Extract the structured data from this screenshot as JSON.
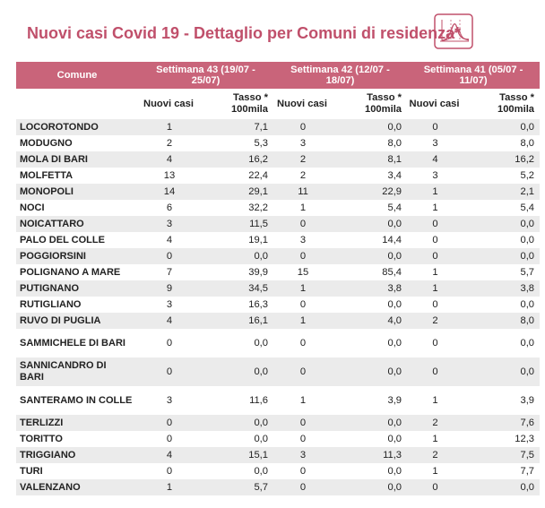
{
  "title": "Nuovi casi Covid 19 - Dettaglio per Comuni di residenza*",
  "logo_icon": "trend-chart-icon",
  "colors": {
    "accent": "#c0506b",
    "header_bg": "#c9647a",
    "row_alt": "#ebebeb"
  },
  "table": {
    "col_comune": "Comune",
    "weeks": [
      {
        "label": "Settimana 43 (19/07 - 25/07)"
      },
      {
        "label": "Settimana 42 (12/07 - 18/07)"
      },
      {
        "label": "Settimana 41 (05/07 - 11/07)"
      }
    ],
    "sub_cases": "Nuovi casi",
    "sub_rate": "Tasso * 100mila",
    "rows": [
      {
        "name": "LOCOROTONDO",
        "c43": "1",
        "r43": "7,1",
        "c42": "0",
        "r42": "0,0",
        "c41": "0",
        "r41": "0,0"
      },
      {
        "name": "MODUGNO",
        "c43": "2",
        "r43": "5,3",
        "c42": "3",
        "r42": "8,0",
        "c41": "3",
        "r41": "8,0"
      },
      {
        "name": "MOLA DI BARI",
        "c43": "4",
        "r43": "16,2",
        "c42": "2",
        "r42": "8,1",
        "c41": "4",
        "r41": "16,2"
      },
      {
        "name": "MOLFETTA",
        "c43": "13",
        "r43": "22,4",
        "c42": "2",
        "r42": "3,4",
        "c41": "3",
        "r41": "5,2"
      },
      {
        "name": "MONOPOLI",
        "c43": "14",
        "r43": "29,1",
        "c42": "11",
        "r42": "22,9",
        "c41": "1",
        "r41": "2,1"
      },
      {
        "name": "NOCI",
        "c43": "6",
        "r43": "32,2",
        "c42": "1",
        "r42": "5,4",
        "c41": "1",
        "r41": "5,4"
      },
      {
        "name": "NOICATTARO",
        "c43": "3",
        "r43": "11,5",
        "c42": "0",
        "r42": "0,0",
        "c41": "0",
        "r41": "0,0"
      },
      {
        "name": "PALO DEL COLLE",
        "c43": "4",
        "r43": "19,1",
        "c42": "3",
        "r42": "14,4",
        "c41": "0",
        "r41": "0,0"
      },
      {
        "name": "POGGIORSINI",
        "c43": "0",
        "r43": "0,0",
        "c42": "0",
        "r42": "0,0",
        "c41": "0",
        "r41": "0,0"
      },
      {
        "name": "POLIGNANO A MARE",
        "c43": "7",
        "r43": "39,9",
        "c42": "15",
        "r42": "85,4",
        "c41": "1",
        "r41": "5,7"
      },
      {
        "name": "PUTIGNANO",
        "c43": "9",
        "r43": "34,5",
        "c42": "1",
        "r42": "3,8",
        "c41": "1",
        "r41": "3,8"
      },
      {
        "name": "RUTIGLIANO",
        "c43": "3",
        "r43": "16,3",
        "c42": "0",
        "r42": "0,0",
        "c41": "0",
        "r41": "0,0"
      },
      {
        "name": "RUVO DI PUGLIA",
        "c43": "4",
        "r43": "16,1",
        "c42": "1",
        "r42": "4,0",
        "c41": "2",
        "r41": "8,0"
      },
      {
        "name": "SAMMICHELE DI BARI",
        "c43": "0",
        "r43": "0,0",
        "c42": "0",
        "r42": "0,0",
        "c41": "0",
        "r41": "0,0",
        "tall": true
      },
      {
        "name": "SANNICANDRO DI BARI",
        "c43": "0",
        "r43": "0,0",
        "c42": "0",
        "r42": "0,0",
        "c41": "0",
        "r41": "0,0",
        "tall": true
      },
      {
        "name": "SANTERAMO IN COLLE",
        "c43": "3",
        "r43": "11,6",
        "c42": "1",
        "r42": "3,9",
        "c41": "1",
        "r41": "3,9",
        "tall": true
      },
      {
        "name": "TERLIZZI",
        "c43": "0",
        "r43": "0,0",
        "c42": "0",
        "r42": "0,0",
        "c41": "2",
        "r41": "7,6"
      },
      {
        "name": "TORITTO",
        "c43": "0",
        "r43": "0,0",
        "c42": "0",
        "r42": "0,0",
        "c41": "1",
        "r41": "12,3"
      },
      {
        "name": "TRIGGIANO",
        "c43": "4",
        "r43": "15,1",
        "c42": "3",
        "r42": "11,3",
        "c41": "2",
        "r41": "7,5"
      },
      {
        "name": "TURI",
        "c43": "0",
        "r43": "0,0",
        "c42": "0",
        "r42": "0,0",
        "c41": "1",
        "r41": "7,7"
      },
      {
        "name": "VALENZANO",
        "c43": "1",
        "r43": "5,7",
        "c42": "0",
        "r42": "0,0",
        "c41": "0",
        "r41": "0,0"
      }
    ]
  }
}
